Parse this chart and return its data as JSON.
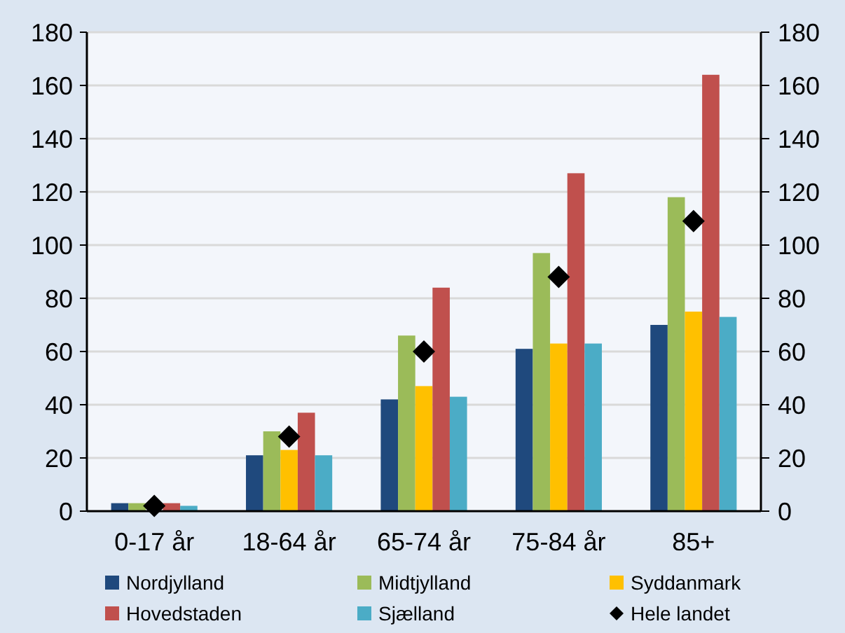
{
  "chart_data": {
    "type": "bar",
    "categories": [
      "0-17 år",
      "18-64 år",
      "65-74 år",
      "75-84 år",
      "85+"
    ],
    "series": [
      {
        "name": "Nordjylland",
        "color": "#1f497d",
        "values": [
          3,
          21,
          42,
          61,
          70
        ]
      },
      {
        "name": "Midtjylland",
        "color": "#9bbb59",
        "values": [
          3,
          30,
          66,
          97,
          118
        ]
      },
      {
        "name": "Syddanmark",
        "color": "#ffc000",
        "values": [
          null,
          23,
          47,
          63,
          75
        ]
      },
      {
        "name": "Hovedstaden",
        "color": "#c0504d",
        "values": [
          3,
          37,
          84,
          127,
          164
        ]
      },
      {
        "name": "Sjælland",
        "color": "#4bacc6",
        "values": [
          2,
          21,
          43,
          63,
          73
        ]
      },
      {
        "name": "Hele landet",
        "type": "scatter",
        "marker": "diamond",
        "color": "#000000",
        "x": [
          "0-17 år",
          "18-64 år",
          "65-74 år",
          "75-84 år",
          "85+"
        ],
        "values": [
          2,
          28,
          60,
          88,
          109
        ]
      }
    ],
    "ylim": [
      0,
      180
    ],
    "yticks": [
      0,
      20,
      40,
      60,
      80,
      100,
      120,
      140,
      160,
      180
    ],
    "y2lim": [
      0,
      180
    ],
    "y2ticks": [
      0,
      20,
      40,
      60,
      80,
      100,
      120,
      140,
      160,
      180
    ],
    "grid": "y",
    "legend": "bottom"
  }
}
